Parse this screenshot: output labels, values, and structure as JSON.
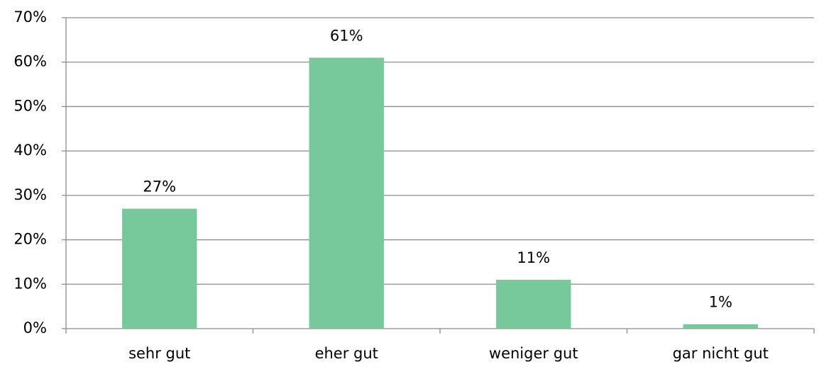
{
  "chart_data": {
    "type": "bar",
    "categories": [
      "sehr gut",
      "eher gut",
      "weniger gut",
      "gar nicht gut"
    ],
    "values": [
      27,
      61,
      11,
      1
    ],
    "value_labels": [
      "27%",
      "61%",
      "11%",
      "1%"
    ],
    "color": "#77c99c",
    "ylim": [
      0,
      70
    ],
    "yticks": [
      {
        "value": 0,
        "label": "0%"
      },
      {
        "value": 10,
        "label": "10%"
      },
      {
        "value": 20,
        "label": "20%"
      },
      {
        "value": 30,
        "label": "30%"
      },
      {
        "value": 40,
        "label": "40%"
      },
      {
        "value": 50,
        "label": "50%"
      },
      {
        "value": 60,
        "label": "60%"
      },
      {
        "value": 70,
        "label": "70%"
      }
    ],
    "grid": true
  }
}
